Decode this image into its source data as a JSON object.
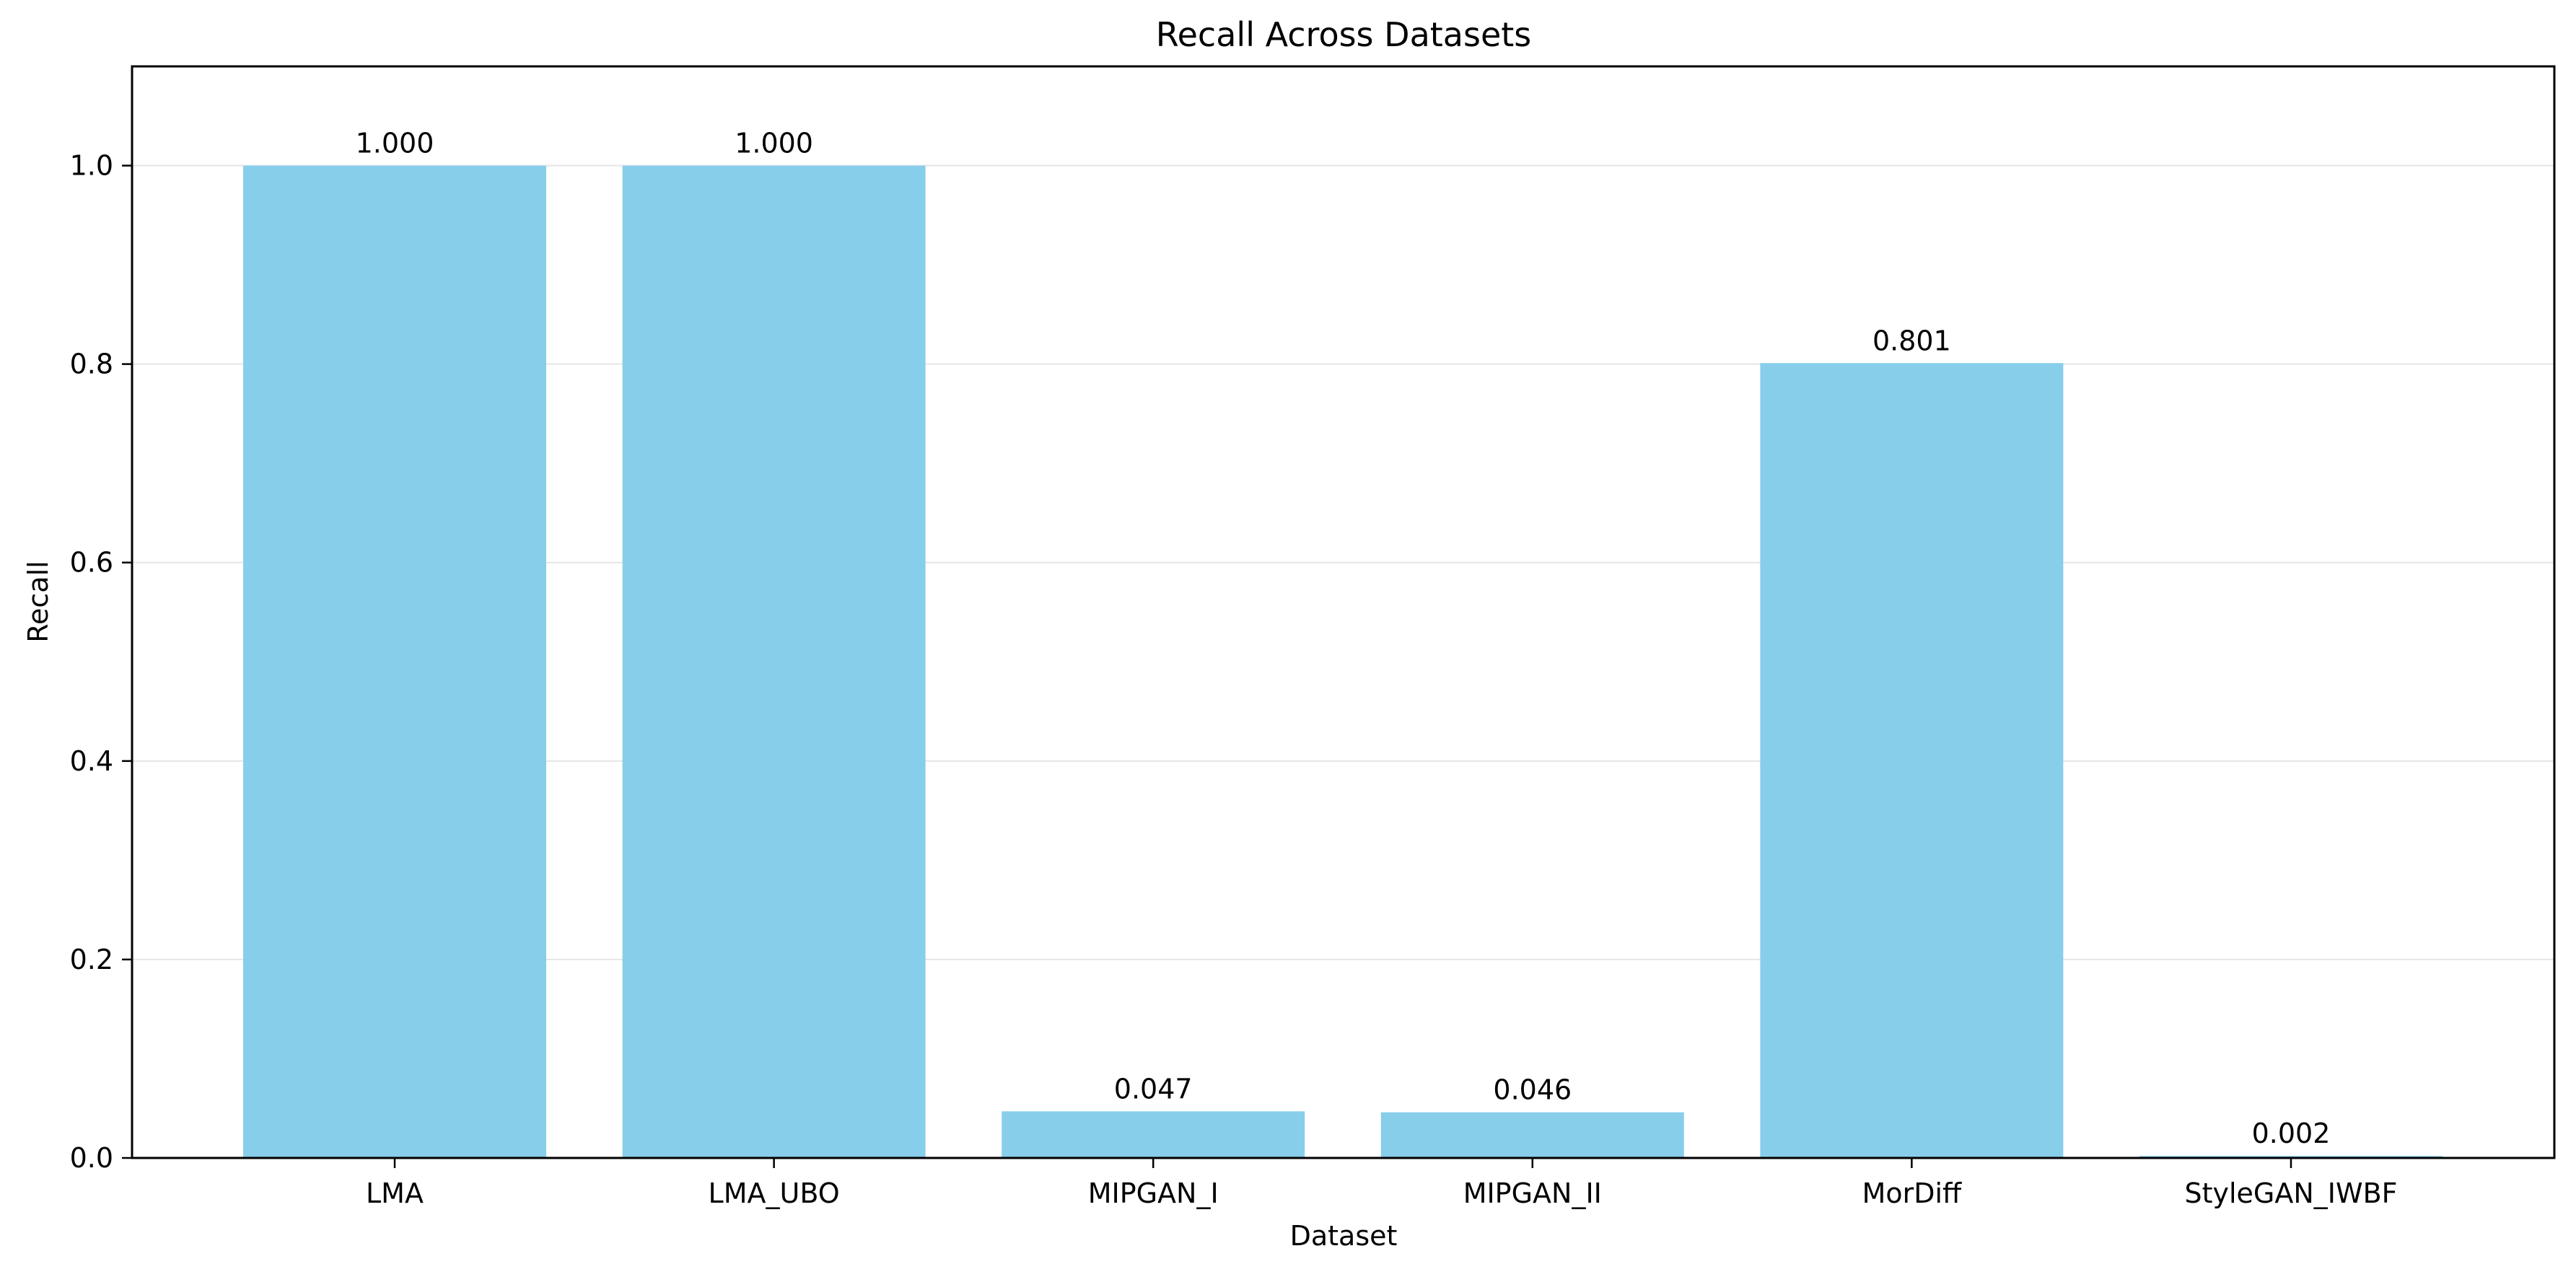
{
  "chart_data": {
    "type": "bar",
    "title": "Recall Across Datasets",
    "xlabel": "Dataset",
    "ylabel": "Recall",
    "categories": [
      "LMA",
      "LMA_UBO",
      "MIPGAN_I",
      "MIPGAN_II",
      "MorDiff",
      "StyleGAN_IWBF"
    ],
    "values": [
      1.0,
      1.0,
      0.047,
      0.046,
      0.801,
      0.002
    ],
    "value_labels": [
      "1.000",
      "1.000",
      "0.047",
      "0.046",
      "0.801",
      "0.002"
    ],
    "ylim": [
      0,
      1.1
    ],
    "yticks": [
      0.0,
      0.2,
      0.4,
      0.6,
      0.8,
      1.0
    ],
    "ytick_labels": [
      "0.0",
      "0.2",
      "0.4",
      "0.6",
      "0.8",
      "1.0"
    ],
    "grid": "horizontal",
    "legend": "none",
    "colors": {
      "bar": "#87CEEB",
      "grid": "#e6e6e6",
      "axes": "#000000"
    }
  }
}
